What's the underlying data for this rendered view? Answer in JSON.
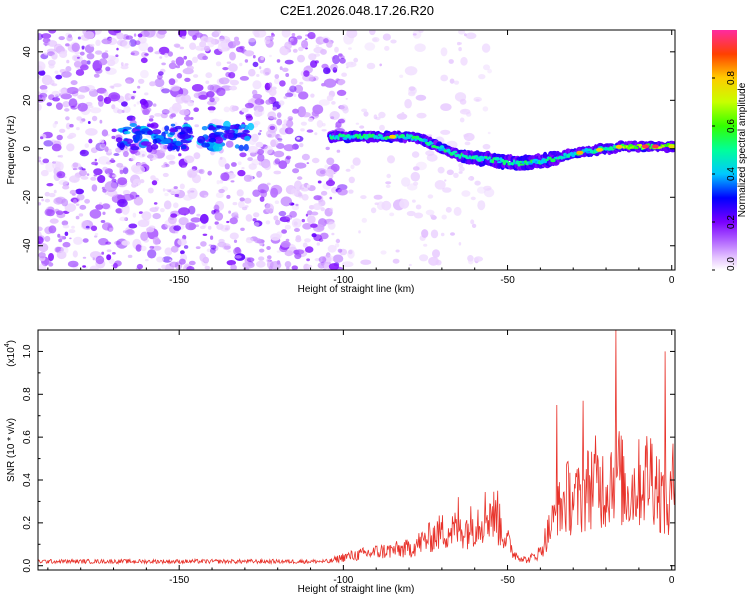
{
  "title": "C2E1.2026.048.17.26.R20",
  "colorbar": {
    "label": "Normalized spectral amplitude",
    "ticks": [
      "0.0",
      "0.2",
      "0.4",
      "0.6",
      "0.8"
    ],
    "tick_values": [
      0.0,
      0.2,
      0.4,
      0.6,
      0.8
    ],
    "range": [
      0,
      1
    ]
  },
  "chart_data": [
    {
      "type": "heatmap",
      "title": "C2E1.2026.048.17.26.R20",
      "xlabel": "Height of straight line (km)",
      "ylabel": "Frequency (Hz)",
      "xlim": [
        -193,
        1
      ],
      "ylim": [
        -50,
        49
      ],
      "x_ticks": [
        -150,
        -100,
        -50,
        0
      ],
      "x_tick_labels": [
        "-150",
        "-100",
        "-50",
        "0"
      ],
      "y_ticks": [
        -40,
        -20,
        0,
        20,
        40
      ],
      "y_tick_labels": [
        "-40",
        "-20",
        "0",
        "20",
        "40"
      ],
      "trace_ridge": {
        "x": [
          -103,
          -95,
          -88,
          -82,
          -76,
          -70,
          -64,
          -58,
          -52,
          -46,
          -40,
          -36,
          -30,
          -25,
          -20,
          -15,
          -10,
          -5,
          0
        ],
        "y": [
          5,
          5,
          5,
          5,
          4,
          0,
          -3,
          -4,
          -5,
          -6,
          -5,
          -4,
          -2,
          -1,
          0,
          1,
          1,
          1,
          1
        ]
      },
      "noise_patch": {
        "x": [
          -160,
          -135
        ],
        "y": [
          2,
          8
        ]
      }
    },
    {
      "type": "line",
      "series_name": "SNR",
      "xlabel": "Height of straight line (km)",
      "ylabel": "SNR (10 * v/v)",
      "multiplier_label": "(x10",
      "multiplier_exp": "4",
      "multiplier_close": ")",
      "xlim": [
        -193,
        1
      ],
      "ylim": [
        -0.02,
        1.1
      ],
      "x_ticks": [
        -150,
        -100,
        -50,
        0
      ],
      "x_tick_labels": [
        "-150",
        "-100",
        "-50",
        "0"
      ],
      "y_ticks": [
        0.0,
        0.2,
        0.4,
        0.6,
        0.8,
        1.0
      ],
      "y_tick_labels": [
        "0.0",
        "0.2",
        "0.4",
        "0.6",
        "0.8",
        "1.0"
      ],
      "color": "#e8332b",
      "envelope": {
        "x": [
          -193,
          -150,
          -105,
          -100,
          -90,
          -80,
          -75,
          -70,
          -62,
          -58,
          -55,
          -52,
          -48,
          -44,
          -40,
          -38,
          -35,
          -32,
          -28,
          -24,
          -20,
          -17,
          -14,
          -10,
          -6,
          -3,
          -1,
          0,
          1
        ],
        "y": [
          0.02,
          0.02,
          0.02,
          0.05,
          0.08,
          0.1,
          0.15,
          0.2,
          0.22,
          0.28,
          0.32,
          0.22,
          0.07,
          0.03,
          0.08,
          0.18,
          0.3,
          0.4,
          0.38,
          0.5,
          0.45,
          0.6,
          0.42,
          0.48,
          0.55,
          0.4,
          0.3,
          0.45,
          0.5
        ]
      },
      "peaks": [
        {
          "x": -65,
          "y": 0.32
        },
        {
          "x": -53,
          "y": 0.35
        },
        {
          "x": -35,
          "y": 0.75
        },
        {
          "x": -27,
          "y": 0.77
        },
        {
          "x": -17,
          "y": 1.1
        },
        {
          "x": -2,
          "y": 1.0
        }
      ]
    }
  ]
}
